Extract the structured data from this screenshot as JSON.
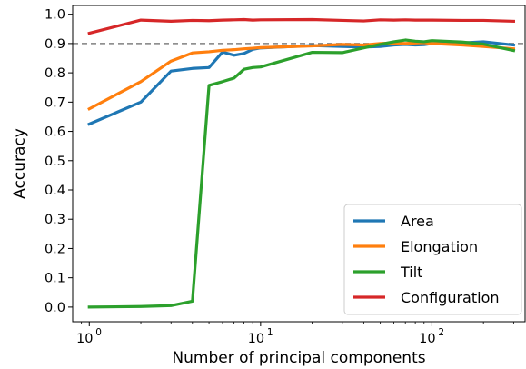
{
  "chart_data": {
    "type": "line",
    "title": "",
    "xlabel": "Number of principal components",
    "ylabel": "Accuracy",
    "xscale": "log",
    "xlim": [
      0.8,
      350
    ],
    "ylim": [
      -0.05,
      1.03
    ],
    "x_ticks": [
      {
        "value": 1,
        "base": "10",
        "exp": "0"
      },
      {
        "value": 10,
        "base": "10",
        "exp": "1"
      },
      {
        "value": 100,
        "base": "10",
        "exp": "2"
      }
    ],
    "y_ticks": [
      "0.0",
      "0.1",
      "0.2",
      "0.3",
      "0.4",
      "0.5",
      "0.6",
      "0.7",
      "0.8",
      "0.9",
      "1.0"
    ],
    "reference_line": {
      "y": 0.9,
      "style": "dashed",
      "color": "#808080"
    },
    "legend_position": "lower-right",
    "grid": false,
    "series": [
      {
        "name": "Area",
        "color": "#1f77b4",
        "x": [
          1,
          2,
          3,
          4,
          5,
          6,
          7,
          8,
          9,
          10,
          20,
          30,
          40,
          50,
          60,
          70,
          80,
          90,
          100,
          150,
          200,
          300
        ],
        "y": [
          0.625,
          0.7,
          0.806,
          0.815,
          0.818,
          0.871,
          0.86,
          0.866,
          0.88,
          0.885,
          0.893,
          0.89,
          0.888,
          0.89,
          0.895,
          0.897,
          0.895,
          0.896,
          0.9,
          0.902,
          0.906,
          0.895
        ]
      },
      {
        "name": "Elongation",
        "color": "#ff7f0e",
        "x": [
          1,
          2,
          3,
          4,
          5,
          6,
          7,
          8,
          9,
          10,
          20,
          30,
          40,
          50,
          60,
          70,
          80,
          90,
          100,
          150,
          200,
          300
        ],
        "y": [
          0.677,
          0.77,
          0.84,
          0.868,
          0.872,
          0.877,
          0.879,
          0.882,
          0.884,
          0.886,
          0.892,
          0.897,
          0.895,
          0.9,
          0.902,
          0.9,
          0.902,
          0.903,
          0.9,
          0.895,
          0.89,
          0.882
        ]
      },
      {
        "name": "Tilt",
        "color": "#2ca02c",
        "x": [
          1,
          2,
          3,
          4,
          5,
          6,
          7,
          8,
          9,
          10,
          20,
          30,
          40,
          50,
          60,
          70,
          80,
          90,
          100,
          150,
          200,
          300
        ],
        "y": [
          0.0,
          0.002,
          0.005,
          0.02,
          0.757,
          0.77,
          0.782,
          0.812,
          0.818,
          0.82,
          0.87,
          0.869,
          0.885,
          0.897,
          0.906,
          0.912,
          0.908,
          0.906,
          0.91,
          0.905,
          0.898,
          0.876
        ]
      },
      {
        "name": "Configuration",
        "color": "#d62728",
        "x": [
          1,
          2,
          3,
          4,
          5,
          6,
          7,
          8,
          9,
          10,
          20,
          30,
          40,
          50,
          60,
          70,
          80,
          90,
          100,
          150,
          200,
          300
        ],
        "y": [
          0.935,
          0.98,
          0.976,
          0.979,
          0.978,
          0.98,
          0.981,
          0.982,
          0.98,
          0.981,
          0.982,
          0.979,
          0.977,
          0.981,
          0.98,
          0.981,
          0.98,
          0.98,
          0.98,
          0.979,
          0.979,
          0.976
        ]
      }
    ]
  }
}
